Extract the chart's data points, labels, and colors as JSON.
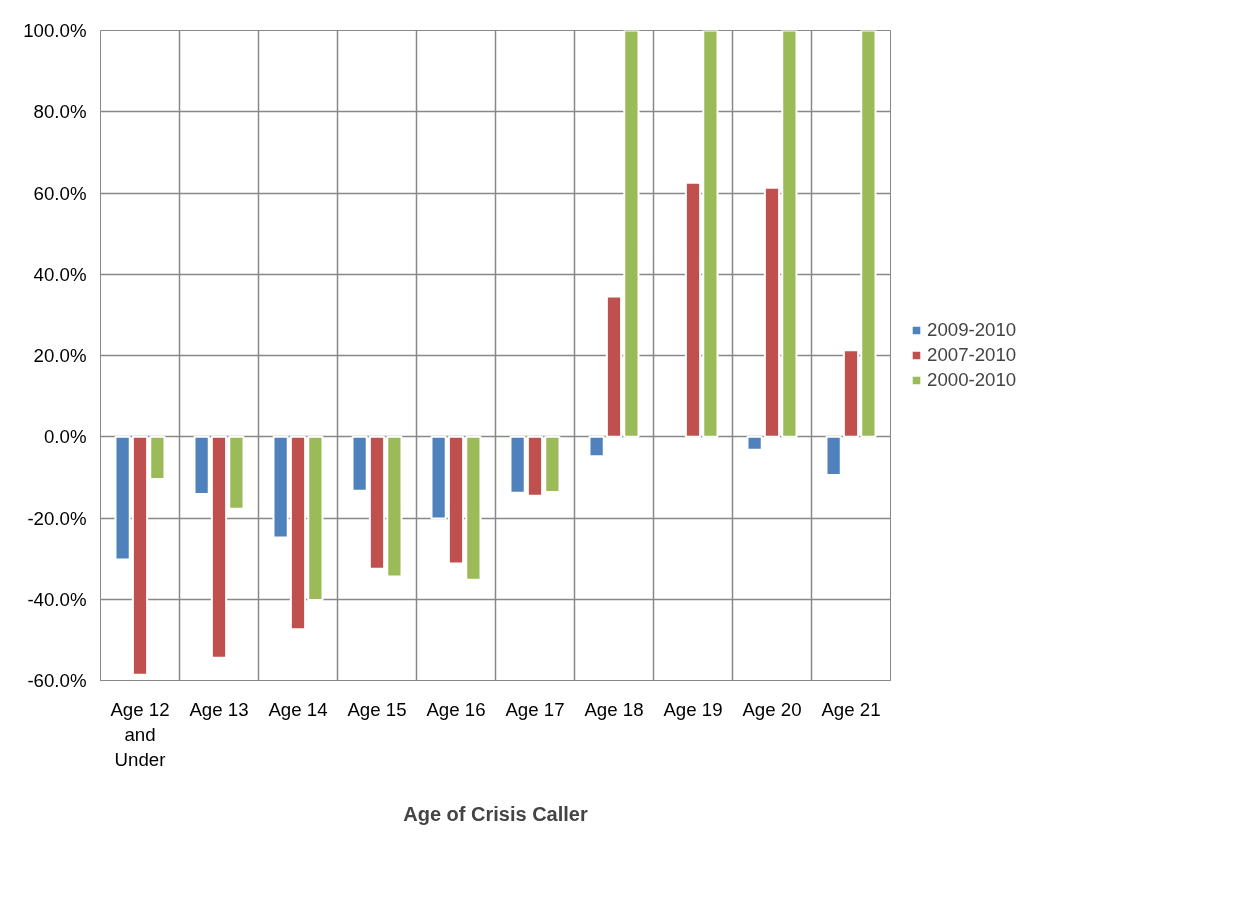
{
  "chart_data": {
    "type": "bar",
    "xlabel": "Age of Crisis Caller",
    "categories": [
      "Age 12 and Under",
      "Age 13",
      "Age 14",
      "Age 15",
      "Age 16",
      "Age 17",
      "Age 18",
      "Age 19",
      "Age 20",
      "Age 21"
    ],
    "series": [
      {
        "name": "2009-2010",
        "color": "#4f81bd",
        "values": [
          -30.2,
          -14.1,
          -24.8,
          -13.3,
          -20.1,
          -13.8,
          -4.8,
          null,
          -3.2,
          -9.4
        ]
      },
      {
        "name": "2007-2010",
        "color": "#c0504d",
        "values": [
          -58.6,
          -54.4,
          -47.4,
          -32.5,
          -31.2,
          -14.5,
          34.5,
          62.5,
          61.3,
          21.3
        ]
      },
      {
        "name": "2000-2010",
        "color": "#9bbb59",
        "values": [
          -10.4,
          -17.7,
          -40.2,
          -34.4,
          -35.2,
          -13.6,
          100,
          100,
          100,
          100
        ]
      }
    ],
    "ylim": [
      -60,
      100
    ],
    "yticks": [
      {
        "value": -60,
        "label": "-60.0%"
      },
      {
        "value": -40,
        "label": "-40.0%"
      },
      {
        "value": -20,
        "label": "-20.0%"
      },
      {
        "value": 0,
        "label": "0.0%"
      },
      {
        "value": 20,
        "label": "20.0%"
      },
      {
        "value": 40,
        "label": "40.0%"
      },
      {
        "value": 60,
        "label": "60.0%"
      },
      {
        "value": 80,
        "label": "80.0%"
      },
      {
        "value": 100,
        "label": "100.0%"
      }
    ],
    "grid": true,
    "legend": "right"
  }
}
